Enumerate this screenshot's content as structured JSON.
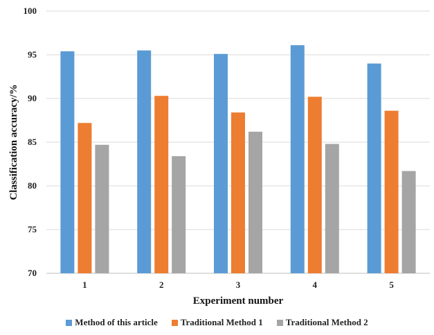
{
  "chart_data": {
    "type": "bar",
    "categories": [
      "1",
      "2",
      "3",
      "4",
      "5"
    ],
    "series": [
      {
        "name": "Method of this article",
        "color": "#5B9BD5",
        "values": [
          95.4,
          95.5,
          95.1,
          96.1,
          94.0
        ]
      },
      {
        "name": "Traditional Method 1",
        "color": "#ED7D31",
        "values": [
          87.2,
          90.3,
          88.4,
          90.2,
          88.6
        ]
      },
      {
        "name": "Traditional Method 2",
        "color": "#A5A5A5",
        "values": [
          84.7,
          83.4,
          86.2,
          84.8,
          81.7
        ]
      }
    ],
    "title": "",
    "xlabel": "Experiment number",
    "ylabel": "Classification accuracy/%",
    "ylim": [
      70,
      100
    ],
    "yticks": [
      "70",
      "75",
      "80",
      "85",
      "90",
      "95",
      "100"
    ],
    "grid": true,
    "legend_position": "bottom"
  }
}
